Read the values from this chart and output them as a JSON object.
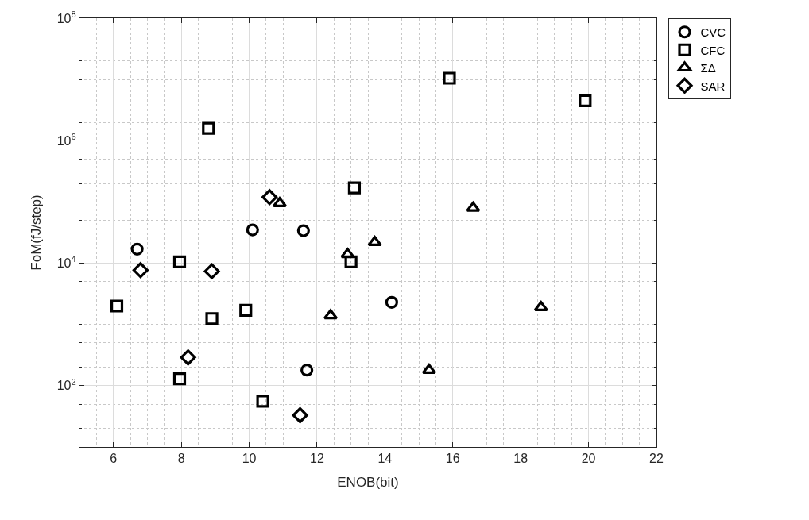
{
  "chart_data": {
    "type": "scatter",
    "xlabel": "ENOB(bit)",
    "ylabel": "FoM(fJ/step)",
    "log": "y",
    "grid": true,
    "legend": "top right",
    "xlim": [
      5,
      22
    ],
    "xticks": [
      6,
      8,
      10,
      12,
      14,
      16,
      18,
      20,
      22
    ],
    "ylim": [
      10,
      100000000
    ],
    "yticks": [
      {
        "value": 100,
        "label": "10$^{2}$"
      },
      {
        "value": 10000,
        "label": "10$^{4}$"
      },
      {
        "value": 1000000,
        "label": "10$^{6}$"
      },
      {
        "value": 100000000,
        "label": "10$^{8}$"
      }
    ],
    "series": [
      {
        "name": "CVC",
        "color": "#000000",
        "marker": "circle",
        "x": [
          6.7,
          10.1,
          11.6,
          14.2,
          11.7
        ],
        "values": [
          17000,
          35000,
          34000,
          2300,
          180
        ]
      },
      {
        "name": "CFC",
        "color": "#000000",
        "marker": "square",
        "x": [
          8.8,
          13.1,
          7.95,
          15.9,
          19.9,
          13.0,
          6.1,
          9.9,
          8.9,
          7.95,
          10.4
        ],
        "values": [
          1600000,
          170000,
          10500,
          10500000,
          4500000,
          10500,
          2000,
          1700,
          1250,
          130,
          56
        ]
      },
      {
        "name": "ΣΔ",
        "color": "#000000",
        "marker": "triangle",
        "x": [
          10.9,
          16.6,
          13.7,
          12.9,
          12.4,
          18.6,
          15.3
        ],
        "values": [
          95000,
          80000,
          22000,
          14000,
          1400,
          1900,
          180
        ]
      },
      {
        "name": "SAR",
        "color": "#000000",
        "marker": "diamond",
        "x": [
          10.6,
          6.8,
          8.9,
          8.2,
          11.5
        ],
        "values": [
          120000,
          7700,
          7400,
          290,
          33
        ]
      }
    ]
  }
}
